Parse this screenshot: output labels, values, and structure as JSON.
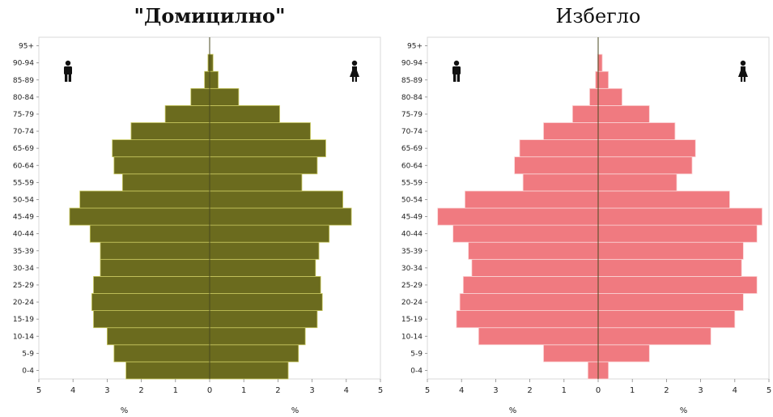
{
  "chart_data": [
    {
      "type": "bar",
      "title": "\"Домицилно\"",
      "categories": [
        "0-4",
        "5-9",
        "10-14",
        "15-19",
        "20-24",
        "25-29",
        "30-34",
        "35-39",
        "40-44",
        "45-49",
        "50-54",
        "55-59",
        "60-64",
        "65-69",
        "70-74",
        "75-79",
        "80-84",
        "85-89",
        "90-94",
        "95+"
      ],
      "series": [
        {
          "values": [
            2.45,
            2.8,
            3.0,
            3.4,
            3.45,
            3.4,
            3.2,
            3.2,
            3.5,
            4.1,
            3.8,
            2.55,
            2.8,
            2.85,
            2.3,
            1.3,
            0.55,
            0.15,
            0.05,
            0.0
          ]
        },
        {
          "values": [
            2.3,
            2.6,
            2.8,
            3.15,
            3.3,
            3.25,
            3.1,
            3.2,
            3.5,
            4.15,
            3.9,
            2.7,
            3.15,
            3.4,
            2.95,
            2.05,
            0.85,
            0.25,
            0.1,
            0.0
          ]
        }
      ],
      "xlim": [
        -5,
        5
      ],
      "xticks": [
        "5",
        "4",
        "3",
        "2",
        "1",
        "0",
        "1",
        "2",
        "3",
        "4",
        "5"
      ],
      "xlabel_left": "%",
      "xlabel_right": "%",
      "color": "#6b6b1e",
      "divider_color": "#c9c860",
      "grid": false
    },
    {
      "type": "bar",
      "title": "Избегло",
      "categories": [
        "0-4",
        "5-9",
        "10-14",
        "15-19",
        "20-24",
        "25-29",
        "30-34",
        "35-39",
        "40-44",
        "45-49",
        "50-54",
        "55-59",
        "60-64",
        "65-69",
        "70-74",
        "75-79",
        "80-84",
        "85-89",
        "90-94",
        "95+"
      ],
      "series": [
        {
          "values": [
            0.3,
            1.6,
            3.5,
            4.15,
            4.05,
            3.95,
            3.7,
            3.8,
            4.25,
            4.7,
            3.9,
            2.2,
            2.45,
            2.3,
            1.6,
            0.75,
            0.25,
            0.08,
            0.02,
            0.0
          ]
        },
        {
          "values": [
            0.3,
            1.5,
            3.3,
            4.0,
            4.25,
            4.65,
            4.2,
            4.25,
            4.65,
            4.8,
            3.85,
            2.3,
            2.75,
            2.85,
            2.25,
            1.5,
            0.7,
            0.3,
            0.12,
            0.0
          ]
        }
      ],
      "xlim": [
        -5,
        5
      ],
      "xticks": [
        "5",
        "4",
        "3",
        "2",
        "1",
        "0",
        "1",
        "2",
        "3",
        "4",
        "5"
      ],
      "xlabel_left": "%",
      "xlabel_right": "%",
      "color": "#f07a80",
      "divider_color": "#fbd6d6",
      "grid": false
    }
  ],
  "icons": {
    "left": "male-icon",
    "right": "female-icon"
  }
}
